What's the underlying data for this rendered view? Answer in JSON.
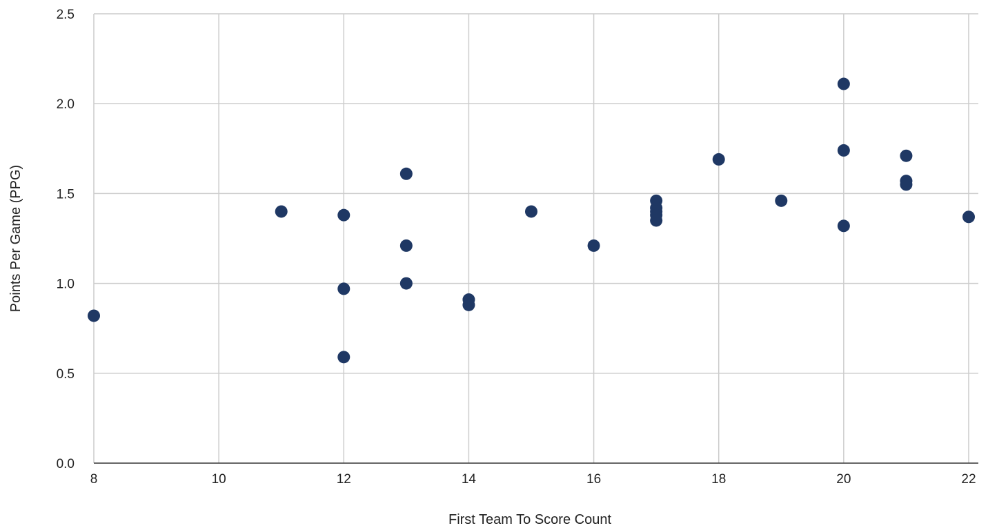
{
  "chart_data": {
    "type": "scatter",
    "title": "",
    "xlabel": "First Team To Score Count",
    "ylabel": "Points Per Game (PPG)",
    "xlim": [
      8,
      22
    ],
    "ylim": [
      0,
      2.5
    ],
    "x_ticks": [
      8,
      10,
      12,
      14,
      16,
      18,
      20,
      22
    ],
    "y_ticks": [
      0,
      0.5,
      1,
      1.5,
      2,
      2.5
    ],
    "x_tick_labels": [
      "8",
      "10",
      "12",
      "14",
      "16",
      "18",
      "20",
      "22"
    ],
    "y_tick_labels": [
      "0.0",
      "0.5",
      "1.0",
      "1.5",
      "2.0",
      "2.5"
    ],
    "grid": true,
    "legend": "none",
    "marker_color": "#1f3864",
    "series": [
      {
        "points": [
          {
            "x": 8,
            "y": 0.82
          },
          {
            "x": 11,
            "y": 1.4
          },
          {
            "x": 12,
            "y": 1.38
          },
          {
            "x": 12,
            "y": 0.97
          },
          {
            "x": 12,
            "y": 0.59
          },
          {
            "x": 13,
            "y": 1.61
          },
          {
            "x": 13,
            "y": 1.21
          },
          {
            "x": 13,
            "y": 1.0
          },
          {
            "x": 14,
            "y": 0.91
          },
          {
            "x": 14,
            "y": 0.88
          },
          {
            "x": 15,
            "y": 1.4
          },
          {
            "x": 16,
            "y": 1.21
          },
          {
            "x": 17,
            "y": 1.46
          },
          {
            "x": 17,
            "y": 1.42
          },
          {
            "x": 17,
            "y": 1.4
          },
          {
            "x": 17,
            "y": 1.38
          },
          {
            "x": 17,
            "y": 1.35
          },
          {
            "x": 18,
            "y": 1.69
          },
          {
            "x": 19,
            "y": 1.46
          },
          {
            "x": 20,
            "y": 2.11
          },
          {
            "x": 20,
            "y": 1.74
          },
          {
            "x": 20,
            "y": 1.32
          },
          {
            "x": 21,
            "y": 1.71
          },
          {
            "x": 21,
            "y": 1.57
          },
          {
            "x": 21,
            "y": 1.55
          },
          {
            "x": 22,
            "y": 1.37
          }
        ]
      }
    ]
  }
}
